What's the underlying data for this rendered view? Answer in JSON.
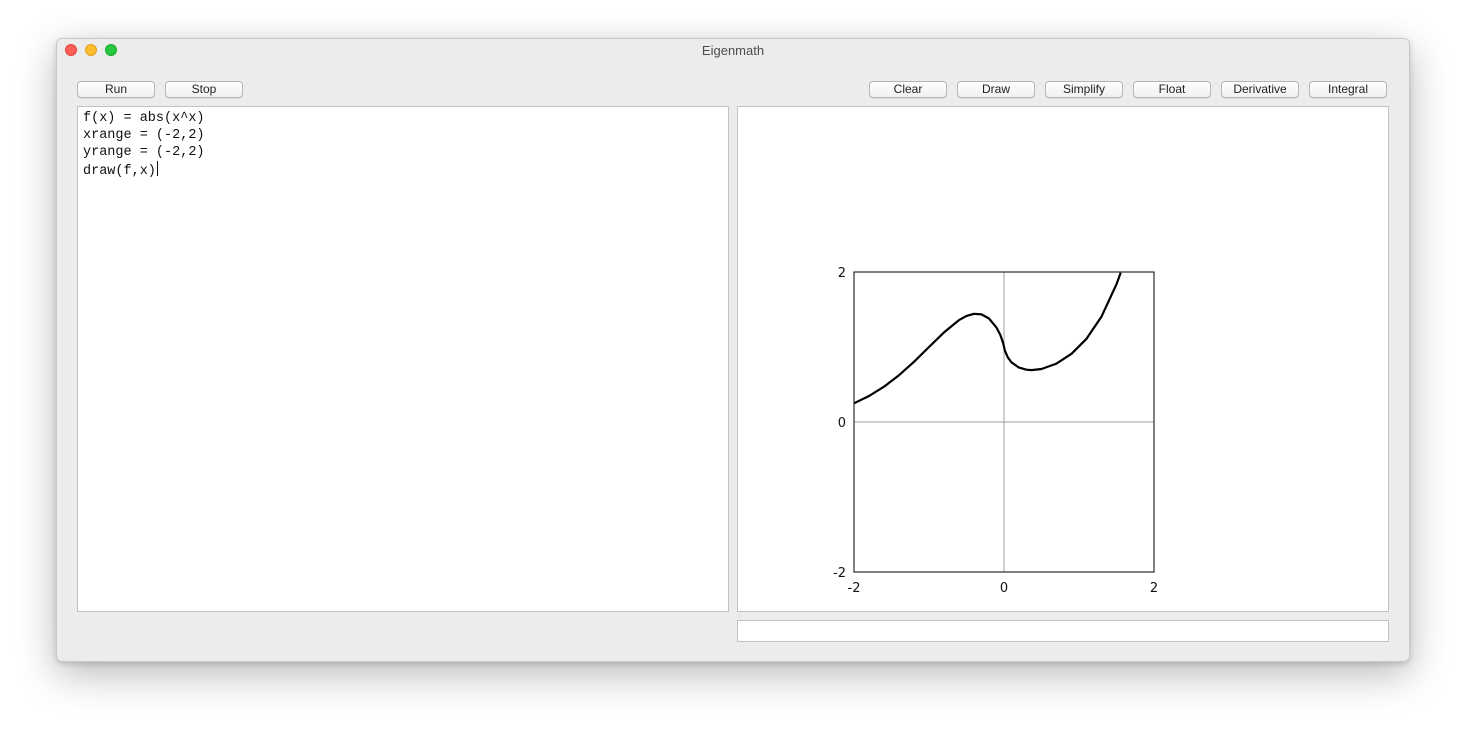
{
  "window": {
    "title": "Eigenmath"
  },
  "toolbar_left": {
    "run_label": "Run",
    "stop_label": "Stop"
  },
  "toolbar_right": {
    "clear_label": "Clear",
    "draw_label": "Draw",
    "simplify_label": "Simplify",
    "float_label": "Float",
    "derivative_label": "Derivative",
    "integral_label": "Integral"
  },
  "editor": {
    "lines": [
      "f(x) = abs(x^x)",
      "xrange = (-2,2)",
      "yrange = (-2,2)",
      "draw(f,x)"
    ]
  },
  "status": {
    "text": ""
  },
  "chart_data": {
    "type": "line",
    "title": "",
    "xlabel": "",
    "ylabel": "",
    "xlim": [
      -2,
      2
    ],
    "ylim": [
      -2,
      2
    ],
    "x_ticks": [
      "-2",
      "0",
      "2"
    ],
    "y_ticks": [
      "2",
      "0",
      "-2"
    ],
    "series": [
      {
        "color": "#000000",
        "x": [
          -2,
          -1.8,
          -1.6,
          -1.4,
          -1.2,
          -1,
          -0.8,
          -0.6,
          -0.5,
          -0.4,
          -0.3,
          -0.2,
          -0.1,
          -0.05,
          -0.01,
          0.01,
          0.05,
          0.1,
          0.2,
          0.3,
          0.368,
          0.5,
          0.7,
          0.9,
          1.1,
          1.3,
          1.5,
          1.556
        ],
        "y": [
          0.25,
          0.347,
          0.471,
          0.624,
          0.803,
          1.0,
          1.195,
          1.359,
          1.414,
          1.443,
          1.435,
          1.38,
          1.259,
          1.162,
          1.047,
          0.955,
          0.861,
          0.794,
          0.725,
          0.697,
          0.692,
          0.707,
          0.779,
          0.91,
          1.11,
          1.406,
          1.837,
          1.99
        ]
      }
    ],
    "axes_color": "#a0a0a0"
  }
}
